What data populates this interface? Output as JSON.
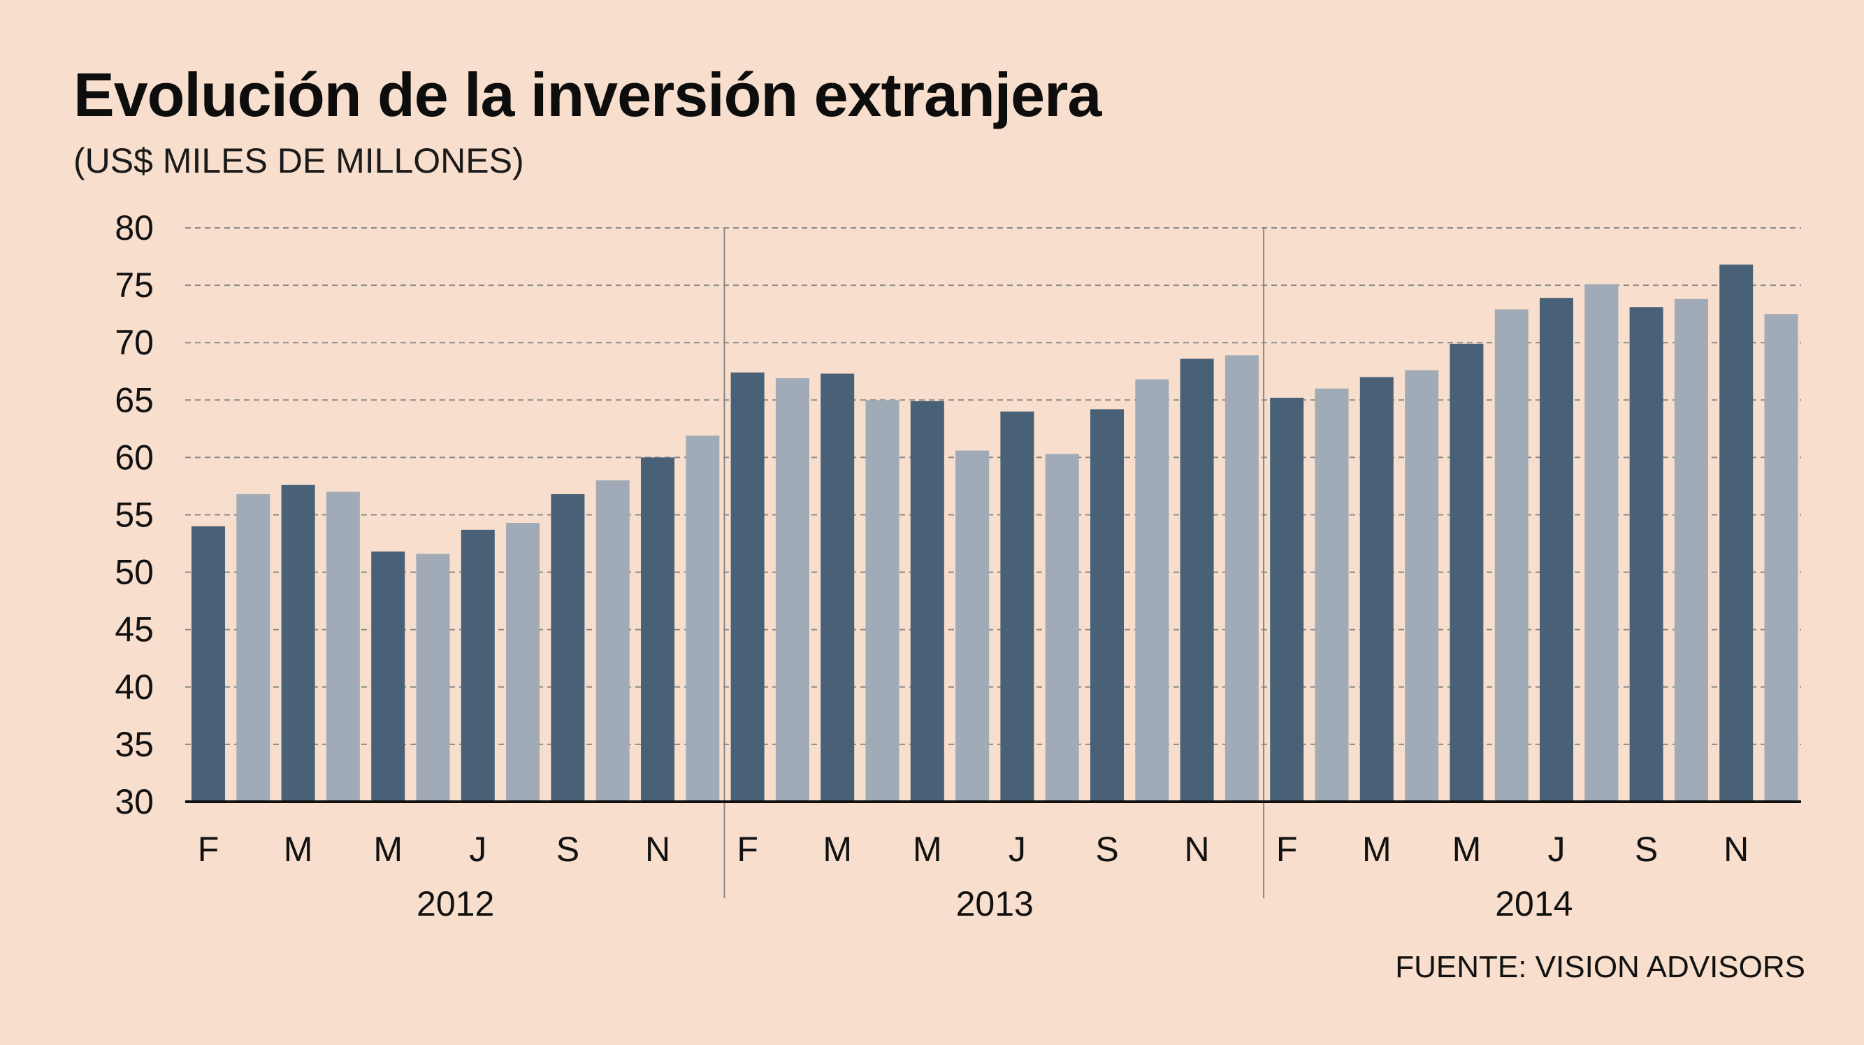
{
  "title": "Evolución de la inversión extranjera",
  "subtitle": "(US$ MILES DE MILLONES)",
  "source": "FUENTE: VISION ADVISORS",
  "colors": {
    "background": "#f8decc",
    "dark_bar": "#486176",
    "light_bar": "#a0abb7",
    "grid": "#8a8a8a",
    "separator": "#888888",
    "axis": "#111111"
  },
  "chart_data": {
    "type": "bar",
    "title": "Evolución de la inversión extranjera",
    "subtitle": "(US$ MILES DE MILLONES)",
    "ylim": [
      30,
      80
    ],
    "yticks": [
      30,
      35,
      40,
      45,
      50,
      55,
      60,
      65,
      70,
      75,
      80
    ],
    "grid": true,
    "years": [
      "2012",
      "2013",
      "2014"
    ],
    "month_tick_labels": [
      [
        "F",
        "M",
        "M",
        "J",
        "S",
        "N"
      ],
      [
        "F",
        "M",
        "M",
        "J",
        "S",
        "N"
      ],
      [
        "F",
        "M",
        "M",
        "J",
        "S",
        "N"
      ]
    ],
    "values": [
      54.0,
      56.8,
      57.6,
      57.0,
      51.8,
      51.6,
      53.7,
      54.3,
      56.8,
      58.0,
      60.0,
      61.9,
      67.4,
      66.9,
      67.3,
      65.0,
      64.9,
      60.6,
      64.0,
      60.3,
      64.2,
      66.8,
      68.6,
      68.9,
      65.2,
      66.0,
      67.0,
      67.6,
      69.9,
      72.9,
      73.9,
      75.1,
      73.1,
      73.8,
      76.8,
      72.5
    ],
    "legend": "none"
  }
}
